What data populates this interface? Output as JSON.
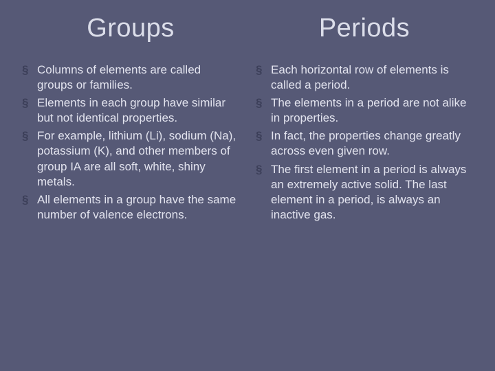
{
  "slide": {
    "background_color": "#565976",
    "text_color": "#e2e3ee",
    "title_color": "#dcdeea",
    "bullet_marker_color": "#3c3f59",
    "title_fontsize": 38,
    "body_fontsize": 17,
    "left": {
      "title": "Groups",
      "bullets": [
        "Columns of elements are called groups or families.",
        "Elements in each group have similar but not identical properties.",
        "For example, lithium (Li), sodium (Na), potassium (K), and other members of group IA are all soft, white, shiny metals.",
        "All elements in a group have the same number of valence electrons."
      ]
    },
    "right": {
      "title": "Periods",
      "bullets": [
        "Each horizontal row of elements is called a period.",
        "The elements in a period are not alike in properties.",
        "In fact, the properties change greatly across even given row.",
        "The first element in a period is always an extremely active solid. The last element in a period, is always an inactive gas."
      ]
    }
  }
}
